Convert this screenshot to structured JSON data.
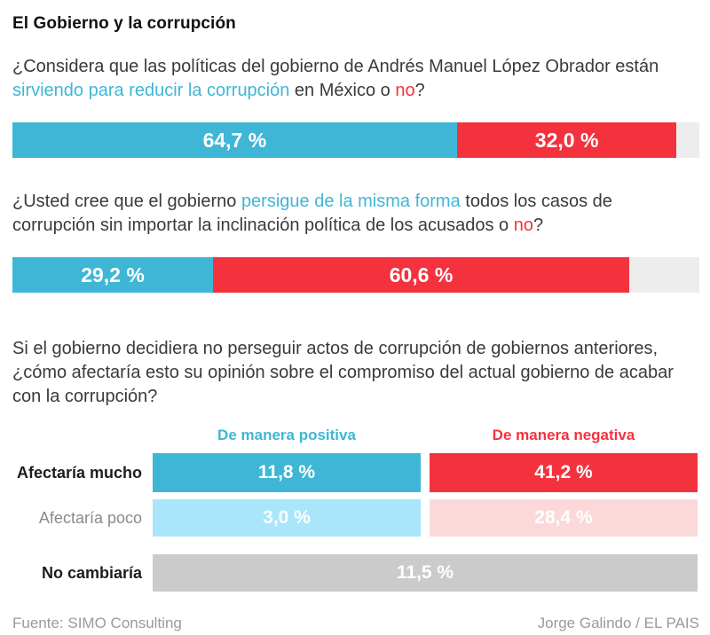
{
  "title": "El Gobierno y la corrupción",
  "colors": {
    "positive": "#3fb6d6",
    "negative": "#f4323e",
    "positive_light": "#a9e5fb",
    "negative_light": "#fbd9da",
    "neutral": "#cbcbcb",
    "track_background": "#ededed",
    "text_dark": "#111111",
    "text_body": "#3a3a3a",
    "text_muted": "#9a9a9a"
  },
  "questions": [
    {
      "segments": [
        {
          "t": "¿Considera que las políticas del gobierno de Andrés Manuel López Obrador están "
        },
        {
          "t": "sirviendo para reducir la corrupción",
          "c": "positive"
        },
        {
          "t": " en México o "
        },
        {
          "t": "no",
          "c": "negative"
        },
        {
          "t": "?"
        }
      ]
    },
    {
      "segments": [
        {
          "t": "¿Usted cree que el gobierno "
        },
        {
          "t": "persigue de la misma forma",
          "c": "positive"
        },
        {
          "t": " todos los casos de corrupción sin importar la inclinación política de los acusados o "
        },
        {
          "t": "no",
          "c": "negative"
        },
        {
          "t": "?"
        }
      ]
    },
    {
      "segments": [
        {
          "t": "Si el gobierno decidiera no perseguir actos de corrupción de gobiernos anteriores, ¿cómo afectaría esto su opinión sobre el compromiso del actual gobierno de acabar con la corrupción?"
        }
      ]
    }
  ],
  "chart_data": [
    {
      "type": "bar",
      "orientation": "horizontal-stacked",
      "title": "¿Considera que las políticas del gobierno de Andrés Manuel López Obrador están sirviendo para reducir la corrupción en México o no?",
      "categories": [
        "Sí, sirviendo para reducir la corrupción",
        "No"
      ],
      "values": [
        64.7,
        32.0
      ],
      "labels": [
        "64,7 %",
        "32,0 %"
      ],
      "no_answer_pct": 3.3,
      "xlim": [
        0,
        100
      ],
      "colors": [
        "#3fb6d6",
        "#f4323e"
      ]
    },
    {
      "type": "bar",
      "orientation": "horizontal-stacked",
      "title": "¿Usted cree que el gobierno persigue de la misma forma todos los casos de corrupción sin importar la inclinación política de los acusados o no?",
      "categories": [
        "Sí, persigue de la misma forma",
        "No"
      ],
      "values": [
        29.2,
        60.6
      ],
      "labels": [
        "29,2 %",
        "60,6 %"
      ],
      "no_answer_pct": 10.2,
      "xlim": [
        0,
        100
      ],
      "colors": [
        "#3fb6d6",
        "#f4323e"
      ]
    },
    {
      "type": "table",
      "title": "Si el gobierno decidiera no perseguir actos de corrupción de gobiernos anteriores, ¿cómo afectaría esto su opinión sobre el compromiso del actual gobierno de acabar con la corrupción?",
      "columns": [
        "De manera positiva",
        "De manera negativa"
      ],
      "rows": [
        {
          "label": "Afectaría mucho",
          "values": [
            11.8,
            41.2
          ],
          "labels": [
            "11,8 %",
            "41,2 %"
          ]
        },
        {
          "label": "Afectaría poco",
          "values": [
            3.0,
            28.4
          ],
          "labels": [
            "3,0 %",
            "28,4 %"
          ]
        },
        {
          "label": "No cambiaría",
          "values": [
            11.5
          ],
          "labels": [
            "11,5 %"
          ],
          "spans_both_columns": true
        }
      ]
    }
  ],
  "footer": {
    "source": "Fuente: SIMO Consulting",
    "credit": "Jorge Galindo / EL PAIS"
  }
}
